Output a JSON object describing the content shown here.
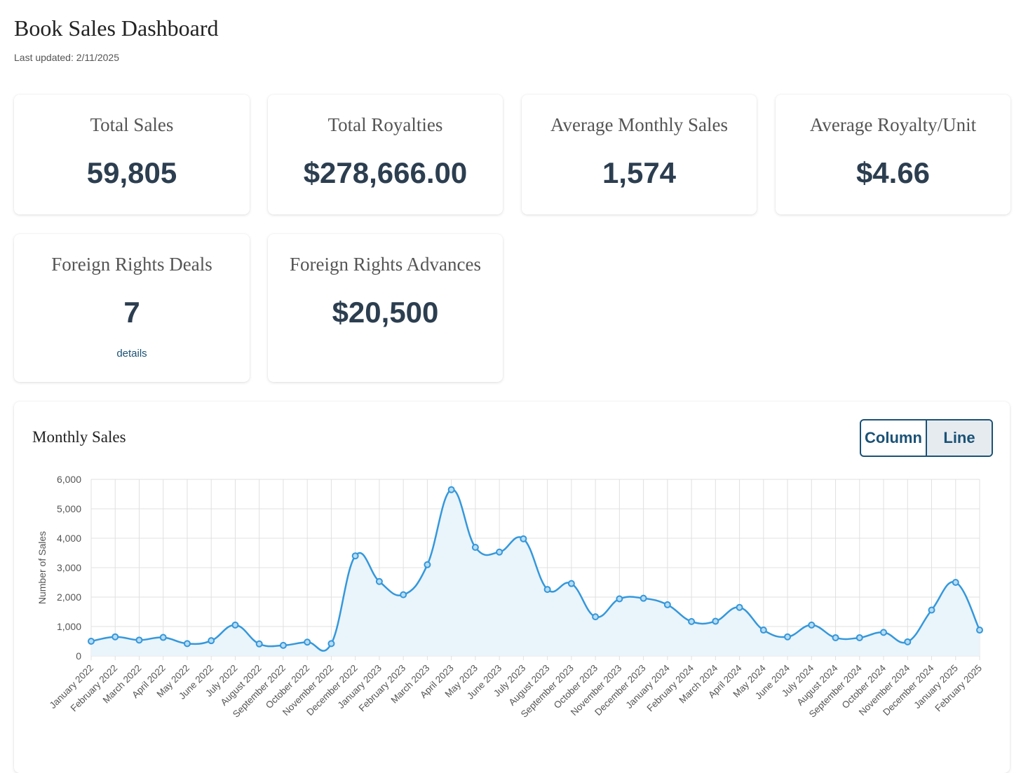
{
  "header": {
    "title": "Book Sales Dashboard",
    "updated": "Last updated: 2/11/2025"
  },
  "cards": [
    {
      "label": "Total Sales",
      "value": "59,805"
    },
    {
      "label": "Total Royalties",
      "value": "$278,666.00"
    },
    {
      "label": "Average Monthly Sales",
      "value": "1,574"
    },
    {
      "label": "Average Royalty/Unit",
      "value": "$4.66"
    },
    {
      "label": "Foreign Rights Deals",
      "value": "7",
      "link": "details"
    },
    {
      "label": "Foreign Rights Advances",
      "value": "$20,500"
    }
  ],
  "chart_panel": {
    "title": "Monthly Sales",
    "toggle": {
      "column": "Column",
      "line": "Line",
      "active": "line"
    }
  },
  "colors": {
    "line": "#3498db",
    "fill": "#eaf4fb",
    "grid": "#e0e0e0",
    "accent": "#1a5276"
  },
  "chart_data": {
    "type": "line",
    "title": "Monthly Sales",
    "xlabel": "",
    "ylabel": "Number of Sales",
    "ylim": [
      0,
      6000
    ],
    "yticks": [
      0,
      1000,
      2000,
      3000,
      4000,
      5000,
      6000
    ],
    "ytick_labels": [
      "0",
      "1,000",
      "2,000",
      "3,000",
      "4,000",
      "5,000",
      "6,000"
    ],
    "grid": true,
    "categories": [
      "January 2022",
      "February 2022",
      "March 2022",
      "April 2022",
      "May 2022",
      "June 2022",
      "July 2022",
      "August 2022",
      "September 2022",
      "October 2022",
      "November 2022",
      "December 2022",
      "January 2023",
      "February 2023",
      "March 2023",
      "April 2023",
      "May 2023",
      "June 2023",
      "July 2023",
      "August 2023",
      "September 2023",
      "October 2023",
      "November 2023",
      "December 2023",
      "January 2024",
      "February 2024",
      "March 2024",
      "April 2024",
      "May 2024",
      "June 2024",
      "July 2024",
      "August 2024",
      "September 2024",
      "October 2024",
      "November 2024",
      "December 2024",
      "January 2025",
      "February 2025"
    ],
    "series": [
      {
        "name": "Monthly Sales",
        "values": [
          500,
          650,
          540,
          630,
          420,
          520,
          1050,
          410,
          360,
          470,
          420,
          3400,
          2530,
          2080,
          3100,
          5650,
          3690,
          3530,
          3980,
          2260,
          2460,
          1330,
          1940,
          1960,
          1740,
          1170,
          1180,
          1650,
          880,
          650,
          1050,
          620,
          620,
          800,
          480,
          1560,
          2500,
          880
        ]
      }
    ]
  }
}
